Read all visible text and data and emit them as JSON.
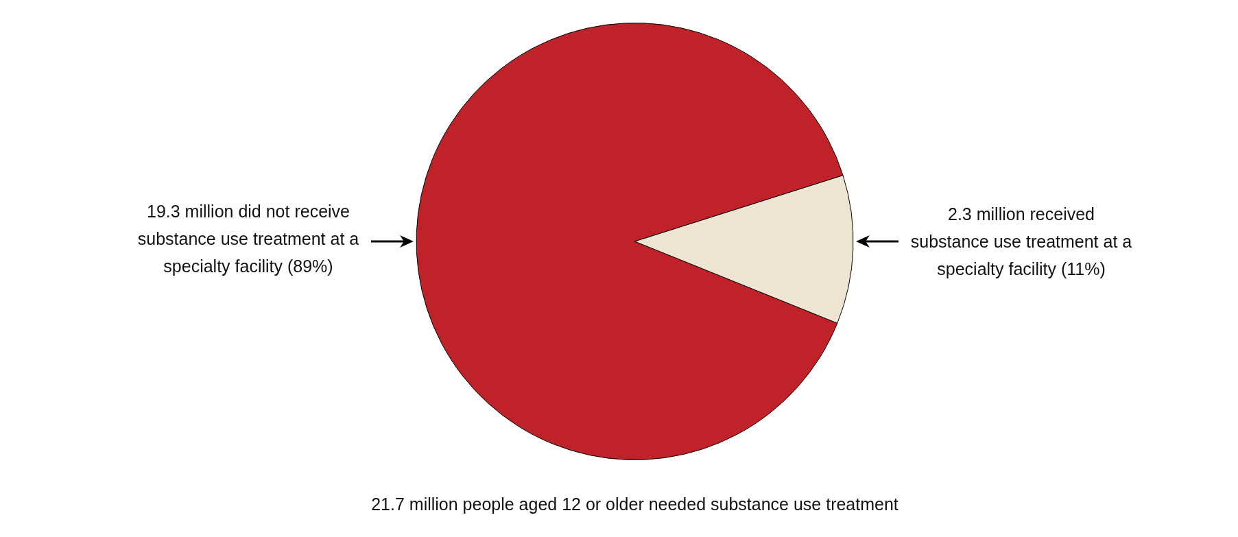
{
  "chart_data": {
    "type": "pie",
    "title": "21.7 million people aged 12 or older needed substance use treatment",
    "categories": [
      "19.3 million did not receive substance use treatment at a specialty facility (89%)",
      "2.3 million received substance use treatment at a specialty facility (11%)"
    ],
    "values": [
      89,
      11
    ],
    "colors": [
      "#c0222a",
      "#ede4d1"
    ]
  }
}
